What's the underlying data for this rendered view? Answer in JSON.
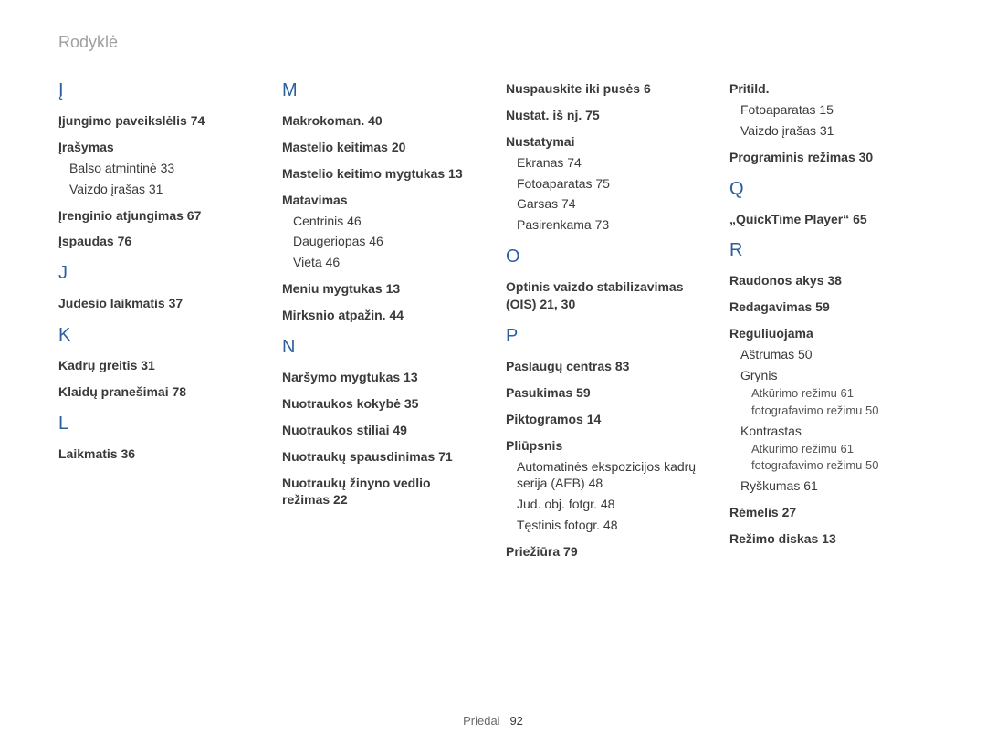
{
  "header": "Rodyklė",
  "footer": {
    "label": "Priedai",
    "page": "92"
  },
  "cols": [
    [
      {
        "t": "letter",
        "v": "Į",
        "first": true
      },
      {
        "t": "entry",
        "v": "Įjungimo paveikslėlis  74"
      },
      {
        "t": "entry",
        "v": "Įrašymas"
      },
      {
        "t": "sub",
        "v": "Balso atmintinė  33"
      },
      {
        "t": "sub",
        "v": "Vaizdo įrašas  31"
      },
      {
        "t": "entry",
        "v": "Įrenginio atjungimas  67"
      },
      {
        "t": "entry",
        "v": "Įspaudas  76"
      },
      {
        "t": "letter",
        "v": "J"
      },
      {
        "t": "entry",
        "v": "Judesio laikmatis  37"
      },
      {
        "t": "letter",
        "v": "K"
      },
      {
        "t": "entry",
        "v": "Kadrų greitis  31"
      },
      {
        "t": "entry",
        "v": "Klaidų pranešimai  78"
      },
      {
        "t": "letter",
        "v": "L"
      },
      {
        "t": "entry",
        "v": "Laikmatis  36"
      }
    ],
    [
      {
        "t": "letter",
        "v": "M",
        "first": true
      },
      {
        "t": "entry",
        "v": "Makrokoman.  40"
      },
      {
        "t": "entry",
        "v": "Mastelio keitimas  20"
      },
      {
        "t": "entry",
        "v": "Mastelio keitimo mygtukas  13"
      },
      {
        "t": "entry",
        "v": "Matavimas"
      },
      {
        "t": "sub",
        "v": "Centrinis  46"
      },
      {
        "t": "sub",
        "v": "Daugeriopas  46"
      },
      {
        "t": "sub",
        "v": "Vieta  46"
      },
      {
        "t": "entry",
        "v": "Meniu mygtukas  13"
      },
      {
        "t": "entry",
        "v": "Mirksnio atpažin.  44"
      },
      {
        "t": "letter",
        "v": "N"
      },
      {
        "t": "entry",
        "v": "Naršymo mygtukas  13"
      },
      {
        "t": "entry",
        "v": "Nuotraukos kokybė  35"
      },
      {
        "t": "entry",
        "v": "Nuotraukos stiliai  49"
      },
      {
        "t": "entry",
        "v": "Nuotraukų spausdinimas  71"
      },
      {
        "t": "entry",
        "v": "Nuotraukų žinyno vedlio režimas  22"
      }
    ],
    [
      {
        "t": "entry",
        "v": "Nuspauskite iki pusės  6",
        "first": true
      },
      {
        "t": "entry",
        "v": "Nustat. iš nj.  75"
      },
      {
        "t": "entry",
        "v": "Nustatymai"
      },
      {
        "t": "sub",
        "v": "Ekranas  74"
      },
      {
        "t": "sub",
        "v": "Fotoaparatas  75"
      },
      {
        "t": "sub",
        "v": "Garsas  74"
      },
      {
        "t": "sub",
        "v": "Pasirenkama  73"
      },
      {
        "t": "letter",
        "v": "O"
      },
      {
        "t": "entry",
        "v": "Optinis vaizdo stabilizavimas (OIS)  21, 30"
      },
      {
        "t": "letter",
        "v": "P"
      },
      {
        "t": "entry",
        "v": "Paslaugų centras  83"
      },
      {
        "t": "entry",
        "v": "Pasukimas  59"
      },
      {
        "t": "entry",
        "v": "Piktogramos  14"
      },
      {
        "t": "entry",
        "v": "Pliūpsnis"
      },
      {
        "t": "sub",
        "v": "Automatinės ekspozicijos kadrų serija (AEB)  48"
      },
      {
        "t": "sub",
        "v": "Jud. obj. fotgr.  48"
      },
      {
        "t": "sub",
        "v": "Tęstinis fotogr.  48"
      },
      {
        "t": "entry",
        "v": "Priežiūra  79"
      }
    ],
    [
      {
        "t": "entry",
        "v": "Pritild.",
        "first": true
      },
      {
        "t": "sub",
        "v": "Fotoaparatas  15"
      },
      {
        "t": "sub",
        "v": "Vaizdo įrašas  31"
      },
      {
        "t": "entry",
        "v": "Programinis režimas  30"
      },
      {
        "t": "letter",
        "v": "Q"
      },
      {
        "t": "entry",
        "v": "„QuickTime Player“  65"
      },
      {
        "t": "letter",
        "v": "R"
      },
      {
        "t": "entry",
        "v": "Raudonos akys  38"
      },
      {
        "t": "entry",
        "v": "Redagavimas  59"
      },
      {
        "t": "entry",
        "v": "Reguliuojama"
      },
      {
        "t": "sub",
        "v": "Aštrumas  50"
      },
      {
        "t": "sub",
        "v": "Grynis"
      },
      {
        "t": "subsub",
        "v": "Atkūrimo režimu  61"
      },
      {
        "t": "subsub",
        "v": "fotografavimo režimu  50"
      },
      {
        "t": "sub",
        "v": "Kontrastas"
      },
      {
        "t": "subsub",
        "v": "Atkūrimo režimu  61"
      },
      {
        "t": "subsub",
        "v": "fotografavimo režimu  50"
      },
      {
        "t": "sub",
        "v": "Ryškumas  61"
      },
      {
        "t": "entry",
        "v": "Rėmelis  27"
      },
      {
        "t": "entry",
        "v": "Režimo diskas  13"
      }
    ]
  ]
}
